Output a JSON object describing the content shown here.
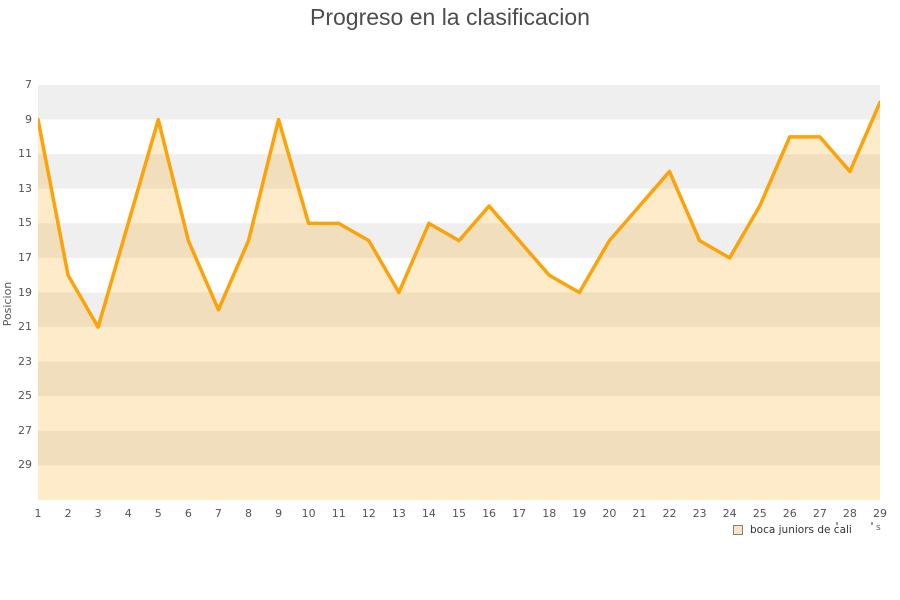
{
  "header": {
    "title": "Progreso en la clasificacion"
  },
  "axis_note": "s",
  "chart_data": {
    "type": "area",
    "title": "Progreso en la clasificacion",
    "xlabel": "",
    "ylabel": "Posicion",
    "x": [
      1,
      2,
      3,
      4,
      5,
      6,
      7,
      8,
      9,
      10,
      11,
      12,
      13,
      14,
      15,
      16,
      17,
      18,
      19,
      20,
      21,
      22,
      23,
      24,
      25,
      26,
      27,
      28,
      29
    ],
    "series": [
      {
        "name": "boca juniors de cali",
        "values": [
          9,
          18,
          21,
          15,
          9,
          16,
          20,
          16,
          9,
          15,
          15,
          16,
          19,
          15,
          16,
          14,
          16,
          18,
          19,
          16,
          14,
          12,
          16,
          17,
          14,
          10,
          10,
          12,
          8
        ]
      }
    ],
    "y_ticks": [
      7,
      9,
      11,
      13,
      15,
      17,
      19,
      21,
      23,
      25,
      27,
      29
    ],
    "ylim": [
      7,
      31
    ],
    "y_inverted_increases_downward": true,
    "grid": "horizontal-bands",
    "legend_position": "bottom-right",
    "colors": {
      "line": "#fba30b",
      "fill": "rgba(251,163,11,0.22)",
      "band_dark": "#efefef",
      "band_light": "#ffffff",
      "legend_marker_fill": "#fae5c0",
      "legend_marker_border": "#808080",
      "title_text": "#4d4d4d",
      "tick_text": "#555555"
    }
  }
}
